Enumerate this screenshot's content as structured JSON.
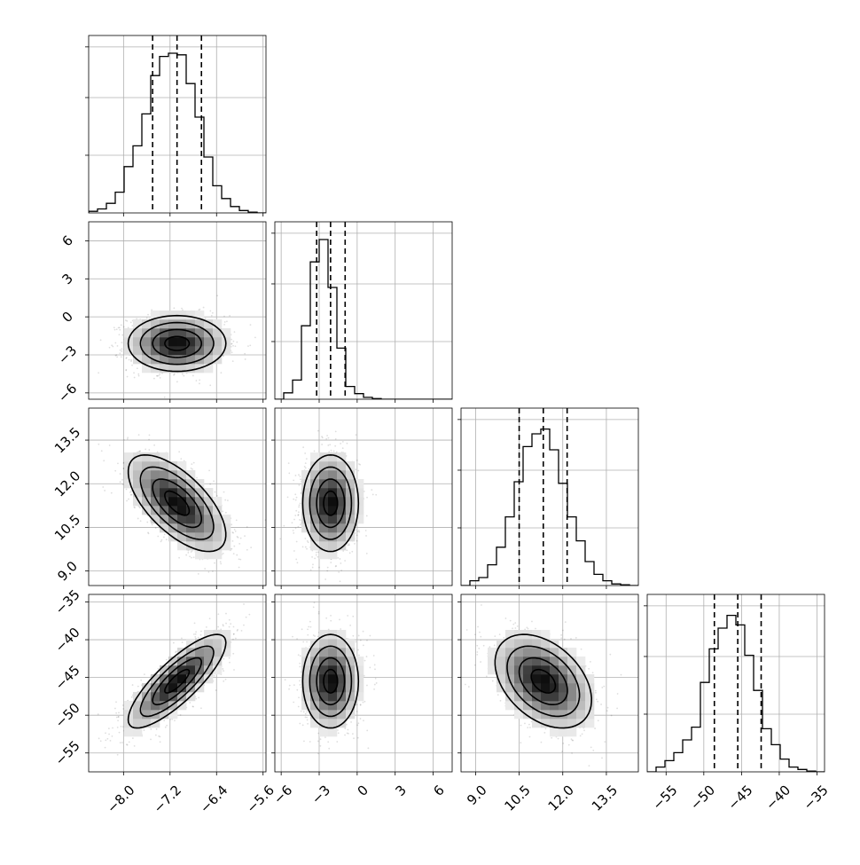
{
  "chart_data": {
    "type": "corner",
    "title": "",
    "n_params": 4,
    "param_labels": [
      "",
      "",
      "",
      ""
    ],
    "params": [
      {
        "name": "",
        "range": [
          -8.6,
          -5.55
        ],
        "ticks": [
          -8.0,
          -7.2,
          -6.4,
          -5.6
        ],
        "tick_labels": [
          "−8.0",
          "−7.2",
          "−6.4",
          "−5.6"
        ],
        "quantiles": [
          -7.5,
          -7.08,
          -6.66
        ],
        "hist": [
          0.01,
          0.025,
          0.06,
          0.13,
          0.29,
          0.42,
          0.62,
          0.86,
          0.98,
          1.0,
          0.99,
          0.81,
          0.6,
          0.35,
          0.17,
          0.09,
          0.04,
          0.015,
          0.005,
          0.0
        ]
      },
      {
        "name": "",
        "range": [
          -6.5,
          7.5
        ],
        "ticks": [
          -6,
          -3,
          0,
          3,
          6
        ],
        "tick_labels": [
          "−6",
          "−3",
          "0",
          "3",
          "6"
        ],
        "quantiles": [
          -3.2,
          -2.1,
          -0.95
        ],
        "hist": [
          0.0,
          0.04,
          0.12,
          0.46,
          0.86,
          1.0,
          0.7,
          0.32,
          0.08,
          0.035,
          0.012,
          0.004,
          0.0,
          0.0,
          0.0,
          0.0,
          0.0,
          0.0,
          0.0,
          0.0
        ]
      },
      {
        "name": "",
        "range": [
          8.5,
          14.6
        ],
        "ticks": [
          9.0,
          10.5,
          12.0,
          13.5
        ],
        "tick_labels": [
          "9.0",
          "10.5",
          "12.0",
          "13.5"
        ],
        "quantiles": [
          10.5,
          11.33,
          12.15
        ],
        "hist": [
          0.0,
          0.03,
          0.05,
          0.13,
          0.24,
          0.43,
          0.65,
          0.87,
          0.95,
          0.98,
          0.85,
          0.64,
          0.43,
          0.28,
          0.15,
          0.07,
          0.03,
          0.01,
          0.005,
          0.0
        ]
      },
      {
        "name": "",
        "range": [
          -57.5,
          -34.0
        ],
        "ticks": [
          -55,
          -50,
          -45,
          -40,
          -35
        ],
        "tick_labels": [
          "−55",
          "−50",
          "−45",
          "−40",
          "−35"
        ],
        "quantiles": [
          -48.6,
          -45.5,
          -42.4
        ],
        "hist": [
          0.0,
          0.03,
          0.07,
          0.12,
          0.2,
          0.28,
          0.56,
          0.77,
          0.9,
          0.98,
          0.92,
          0.73,
          0.51,
          0.27,
          0.17,
          0.08,
          0.03,
          0.015,
          0.005,
          0.0
        ]
      }
    ],
    "y_axis_params": [
      1,
      2,
      3
    ],
    "pairs": [
      {
        "x": 0,
        "y": 1,
        "mean": [
          -7.08,
          -2.1
        ],
        "sd": [
          0.42,
          1.1
        ],
        "corr": 0.0
      },
      {
        "x": 0,
        "y": 2,
        "mean": [
          -7.08,
          11.33
        ],
        "sd": [
          0.42,
          0.83
        ],
        "corr": -0.65
      },
      {
        "x": 1,
        "y": 2,
        "mean": [
          -2.1,
          11.33
        ],
        "sd": [
          1.1,
          0.83
        ],
        "corr": 0.0
      },
      {
        "x": 0,
        "y": 3,
        "mean": [
          -7.08,
          -45.5
        ],
        "sd": [
          0.42,
          3.1
        ],
        "corr": 0.82
      },
      {
        "x": 1,
        "y": 3,
        "mean": [
          -2.1,
          -45.5
        ],
        "sd": [
          1.1,
          3.1
        ],
        "corr": 0.0
      },
      {
        "x": 2,
        "y": 3,
        "mean": [
          11.33,
          -45.5
        ],
        "sd": [
          0.83,
          3.1
        ],
        "corr": -0.4
      }
    ],
    "contour_levels_sigma": [
      0.5,
      1.0,
      1.5,
      2.0
    ],
    "grid": true,
    "legend": "none"
  }
}
